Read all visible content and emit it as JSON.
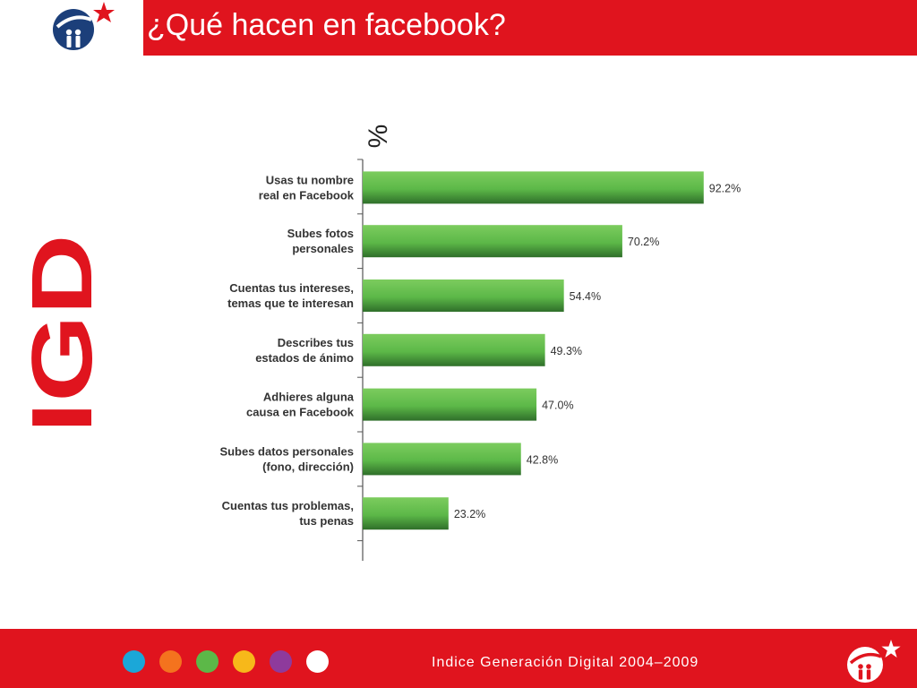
{
  "slide": {
    "title": "¿Qué hacen en facebook?",
    "brand_color": "#e0141e",
    "logo_icon": "igd-star-logo-icon",
    "side_logo_text": "IGD"
  },
  "chart_data": {
    "type": "bar",
    "orientation": "horizontal",
    "title": "",
    "xlabel": "",
    "ylabel": "%",
    "xlim": [
      0,
      100
    ],
    "bar_color": "#5cb848",
    "grid": false,
    "categories": [
      "Usas tu nombre real en Facebook",
      "Subes fotos personales",
      "Cuentas tus intereses, temas que te interesan",
      "Describes tus estados de ánimo",
      "Adhieres alguna causa en Facebook",
      "Subes datos personales (fono, dirección)",
      "Cuentas tus problemas, tus penas"
    ],
    "category_lines": [
      [
        "Usas tu nombre",
        "real en Facebook"
      ],
      [
        "Subes fotos",
        "personales"
      ],
      [
        "Cuentas tus intereses,",
        "temas que te interesan"
      ],
      [
        "Describes tus",
        "estados de ánimo"
      ],
      [
        "Adhieres alguna",
        "causa en Facebook"
      ],
      [
        "Subes datos personales",
        "(fono, dirección)"
      ],
      [
        "Cuentas tus problemas,",
        "tus penas"
      ]
    ],
    "values": [
      92.2,
      70.2,
      54.4,
      49.3,
      47.0,
      42.8,
      23.2
    ],
    "value_labels": [
      "92.2%",
      "70.2%",
      "54.4%",
      "49.3%",
      "47.0%",
      "42.8%",
      "23.2%"
    ]
  },
  "footer": {
    "text": "Indice Generación Digital 2004–2009",
    "dots": [
      {
        "color": "#1ba7d8"
      },
      {
        "color": "#f4731e"
      },
      {
        "color": "#5cb848"
      },
      {
        "color": "#f7b81a"
      },
      {
        "color": "#8e3a9c"
      },
      {
        "color": "#ffffff"
      }
    ]
  }
}
